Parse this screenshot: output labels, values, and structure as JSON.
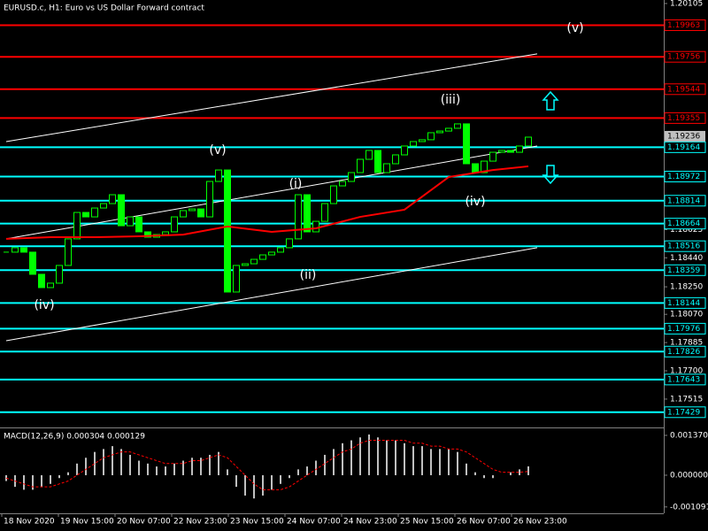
{
  "chart_data": [
    {
      "type": "candlestick",
      "title": "EURUSD.c, H1:  Euro vs US Dollar Forward contract",
      "color": "#00ff00",
      "close": [
        1.18477,
        1.18506,
        1.18477,
        1.18332,
        1.18245,
        1.18274,
        1.1839,
        1.18564,
        1.18737,
        1.18708,
        1.18766,
        1.18795,
        1.18853,
        1.1865,
        1.18708,
        1.1861,
        1.18575,
        1.18592,
        1.1861,
        1.18708,
        1.18749,
        1.1876,
        1.18708,
        1.1894,
        1.19015,
        1.18216,
        1.1839,
        1.18401,
        1.1843,
        1.18459,
        1.18477,
        1.18506,
        1.18564,
        1.18853,
        1.1861,
        1.18679,
        1.18795,
        1.18911,
        1.1894,
        1.18998,
        1.19085,
        1.19143,
        1.18998,
        1.19056,
        1.19114,
        1.19172,
        1.19201,
        1.19213,
        1.19259,
        1.1927,
        1.19288,
        1.19317,
        1.19056,
        1.18998,
        1.19073,
        1.19131,
        1.19143,
        1.19131,
        1.19172,
        1.1923
      ],
      "ma": {
        "color": "#ff0000",
        "x": [
          0,
          5,
          10,
          15,
          20,
          25,
          30,
          35,
          40,
          45,
          50,
          55,
          59
        ],
        "values": [
          1.18564,
          1.18575,
          1.18575,
          1.18581,
          1.18592,
          1.18645,
          1.1861,
          1.18633,
          1.18708,
          1.18755,
          1.18969,
          1.19015,
          1.19039
        ]
      },
      "trendlines": [
        {
          "color": "#ffffff",
          "x": [
            0,
            60
          ],
          "values": [
            1.19201,
            1.19775
          ]
        },
        {
          "color": "#ffffff",
          "x": [
            0,
            60
          ],
          "values": [
            1.18564,
            1.19172
          ]
        },
        {
          "color": "#ffffff",
          "x": [
            0,
            60
          ],
          "values": [
            1.17897,
            1.18506
          ]
        }
      ],
      "levels": [
        {
          "value": 1.19963,
          "color": "#ff0000"
        },
        {
          "value": 1.19756,
          "color": "#ff0000"
        },
        {
          "value": 1.19544,
          "color": "#ff0000"
        },
        {
          "value": 1.19355,
          "color": "#ff0000"
        },
        {
          "value": 1.19164,
          "color": "#00ffff"
        },
        {
          "value": 1.18972,
          "color": "#00ffff"
        },
        {
          "value": 1.18814,
          "color": "#00ffff"
        },
        {
          "value": 1.18664,
          "color": "#00ffff"
        },
        {
          "value": 1.18516,
          "color": "#00ffff"
        },
        {
          "value": 1.18359,
          "color": "#00ffff"
        },
        {
          "value": 1.18144,
          "color": "#00ffff"
        },
        {
          "value": 1.17976,
          "color": "#00ffff"
        },
        {
          "value": 1.17826,
          "color": "#00ffff"
        },
        {
          "value": 1.17643,
          "color": "#00ffff"
        },
        {
          "value": 1.17429,
          "color": "#00ffff"
        }
      ],
      "current_price": {
        "value": 1.19236,
        "color": "#c0c0c0"
      },
      "ylim": [
        1.17335,
        1.20128
      ],
      "yticks": [
        1.20105,
        1.18625,
        {
          "value": 1.1844,
          "label": "1.18440"
        },
        {
          "value": 1.1825,
          "label": "1.18250"
        },
        {
          "value": 1.1807,
          "label": "1.18070"
        },
        1.17885,
        {
          "value": 1.177,
          "label": "1.17700"
        },
        1.17515
      ],
      "xticks": [
        {
          "value": 0,
          "label": "18 Nov 2020"
        },
        {
          "value": 6.4,
          "label": "19 Nov 15:00"
        },
        {
          "value": 12.8,
          "label": "20 Nov 07:00"
        },
        {
          "value": 19.2,
          "label": "22 Nov 23:00"
        },
        {
          "value": 25.6,
          "label": "23 Nov 15:00"
        },
        {
          "value": 32,
          "label": "24 Nov 07:00"
        },
        {
          "value": 38.4,
          "label": "24 Nov 23:00"
        },
        {
          "value": 44.8,
          "label": "25 Nov 15:00"
        },
        {
          "value": 51.2,
          "label": "26 Nov 07:00"
        },
        {
          "value": 57.6,
          "label": "26 Nov 23:00"
        }
      ],
      "annotations": [
        "(v)",
        "(iii)",
        "(v)",
        "(i)",
        "(iv)",
        "(ii)",
        "(iv)"
      ]
    },
    {
      "type": "bar",
      "title": "MACD(12,26,9) 0.000304 0.000129",
      "color": "#c0c0c0",
      "values": [
        -0.0002,
        -0.0004,
        -0.0005,
        -0.0005,
        -0.0004,
        -0.0003,
        -0.0001,
        0.0001,
        0.0004,
        0.0006,
        0.0008,
        0.0009,
        0.001,
        0.0009,
        0.0007,
        0.0005,
        0.0004,
        0.0003,
        0.0003,
        0.0004,
        0.0005,
        0.0006,
        0.0006,
        0.0007,
        0.0008,
        0.0002,
        -0.0004,
        -0.0007,
        -0.0008,
        -0.0007,
        -0.0005,
        -0.0003,
        -0.0001,
        0.0002,
        0.0003,
        0.0005,
        0.0007,
        0.0009,
        0.0011,
        0.0012,
        0.0013,
        0.0014,
        0.0013,
        0.0012,
        0.0012,
        0.0011,
        0.001,
        0.001,
        0.0009,
        0.0009,
        0.0009,
        0.0008,
        0.0004,
        0.0001,
        -0.0001,
        -0.0001,
        0,
        0.0001,
        0.0002,
        0.000304
      ],
      "signal": {
        "color": "#ff0000",
        "values": [
          -0.0001,
          -0.0002,
          -0.0003,
          -0.0004,
          -0.0004,
          -0.0004,
          -0.0003,
          -0.0002,
          0,
          0.0002,
          0.0004,
          0.0006,
          0.0007,
          0.0008,
          0.0008,
          0.0007,
          0.0006,
          0.0005,
          0.0004,
          0.0004,
          0.0004,
          0.0005,
          0.0005,
          0.0006,
          0.0007,
          0.0006,
          0.0003,
          0,
          -0.0003,
          -0.0005,
          -0.0005,
          -0.0005,
          -0.0004,
          -0.0002,
          0,
          0.0002,
          0.0004,
          0.0006,
          0.0008,
          0.0009,
          0.0011,
          0.0012,
          0.0012,
          0.0012,
          0.0012,
          0.0012,
          0.0011,
          0.0011,
          0.001,
          0.001,
          0.0009,
          0.0009,
          0.0008,
          0.0006,
          0.0004,
          0.0002,
          0.0001,
          0.0001,
          0.0001,
          0.000129
        ]
      },
      "ylim": [
        -0.00131,
        0.00152
      ],
      "yticks": [
        {
          "value": 0.00137,
          "label": "0.001370"
        },
        {
          "value": 0,
          "label": "0.000000"
        },
        -0.001091
      ]
    }
  ]
}
